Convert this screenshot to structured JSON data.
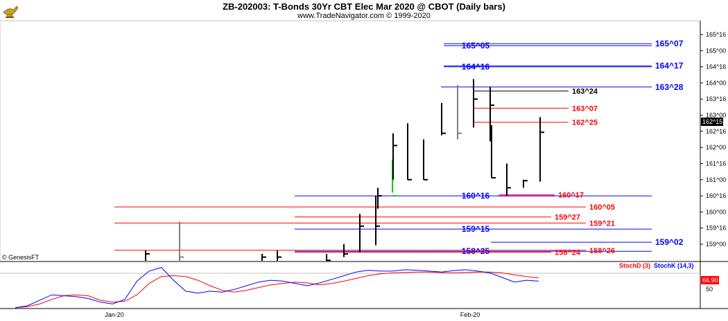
{
  "header": {
    "title": "ZB-202003:  T-Bonds 30Yr CBT Elec Mar 2020 @ CBOT  (Daily bars)",
    "subtitle": "www.TradeNavigator.com © 1999-2020",
    "copyright": "© GenesisFT",
    "logo_icon": "genie-lamp-icon"
  },
  "colors": {
    "blue_level": "#0000ff",
    "red_level": "#ff0000",
    "black_level": "#000000",
    "purple_level": "#8000ff",
    "bar_up": "#000000",
    "bar_gray": "#808080",
    "bar_green": "#00cc00",
    "stoch_d": "#ff0000",
    "stoch_k": "#0000ff",
    "price_marker_bg": "#000000",
    "stoch_marker_bg": "#ff0000"
  },
  "chart_data": [
    {
      "type": "bar",
      "name": "price",
      "ylim": [
        158.5,
        165.875
      ],
      "y_axis_labels": [
        "165^16",
        "165^00",
        "164^16",
        "164^00",
        "163^16",
        "163^00",
        "162^16",
        "162^00",
        "161^16",
        "161^00",
        "160^16",
        "160^00",
        "159^16",
        "159^00"
      ],
      "x_tick_labels": [
        "Jan-20",
        "Feb-20"
      ],
      "last_price_label": "162^15",
      "bars": [
        {
          "high": 158.8,
          "low": 158.2,
          "close": 158.7,
          "color": "black"
        },
        {
          "high": 159.7,
          "low": 158.2,
          "close": 158.6,
          "color": "gray"
        },
        {
          "high": 158.7,
          "low": 158.2,
          "close": 158.6,
          "color": "black"
        },
        {
          "high": 158.8,
          "low": 158.2,
          "close": 158.6,
          "color": "black"
        },
        {
          "high": 158.7,
          "low": 158.2,
          "close": 158.5,
          "color": "black"
        },
        {
          "high": 159.0,
          "low": 158.6,
          "close": 158.7,
          "color": "black"
        },
        {
          "high": 159.94,
          "low": 158.75,
          "close": 159.56,
          "color": "black"
        },
        {
          "high": 160.5,
          "low": 158.97,
          "close": 159.56,
          "color": "black"
        },
        {
          "high": 160.75,
          "low": 160.1,
          "close": 160.5,
          "color": "black"
        },
        {
          "high": 161.62,
          "low": 160.6,
          "close": 160.5,
          "color": "green"
        },
        {
          "high": 162.44,
          "low": 161.0,
          "close": 162.06,
          "color": "black"
        },
        {
          "high": 162.75,
          "low": 161.0,
          "close": 161.0,
          "color": "black"
        },
        {
          "high": 162.25,
          "low": 161.0,
          "close": 161.0,
          "color": "black"
        },
        {
          "high": 163.38,
          "low": 162.38,
          "close": 162.44,
          "color": "black"
        },
        {
          "high": 163.94,
          "low": 162.25,
          "close": 162.44,
          "color": "gray"
        },
        {
          "high": 164.12,
          "low": 162.62,
          "close": 163.5,
          "color": "black"
        },
        {
          "high": 163.88,
          "low": 162.19,
          "close": 163.31,
          "color": "black"
        },
        {
          "high": 162.69,
          "low": 161.06,
          "close": 161.06,
          "color": "black"
        },
        {
          "high": 161.5,
          "low": 160.5,
          "close": 160.75,
          "color": "black"
        },
        {
          "high": 161.0,
          "low": 160.75,
          "close": 160.97,
          "color": "black"
        },
        {
          "high": 162.94,
          "low": 160.94,
          "close": 162.47,
          "color": "black"
        }
      ],
      "levels": [
        {
          "label": "165^05",
          "value": 165.156,
          "color": "blue",
          "label_pos": "center"
        },
        {
          "label": "165^07",
          "value": 165.219,
          "color": "blue",
          "label_pos": "right"
        },
        {
          "label": "164^16",
          "value": 164.5,
          "color": "blue",
          "label_pos": "center"
        },
        {
          "label": "164^17",
          "value": 164.531,
          "color": "blue",
          "label_pos": "right"
        },
        {
          "label": "163^28",
          "value": 163.875,
          "color": "blue",
          "label_pos": "right"
        },
        {
          "label": "163^24",
          "value": 163.75,
          "color": "black",
          "label_pos": "mid"
        },
        {
          "label": "163^07",
          "value": 163.219,
          "color": "red",
          "label_pos": "mid"
        },
        {
          "label": "162^25",
          "value": 162.781,
          "color": "red",
          "label_pos": "mid"
        },
        {
          "label": "160^16",
          "value": 160.5,
          "color": "blue",
          "label_pos": "center"
        },
        {
          "label": "160^17",
          "value": 160.531,
          "color": "red",
          "label_pos": "mid"
        },
        {
          "label": "160^05",
          "value": 160.156,
          "color": "red",
          "label_pos": "mid2"
        },
        {
          "label": "159^27",
          "value": 159.844,
          "color": "red",
          "label_pos": "mid"
        },
        {
          "label": "159^21",
          "value": 159.656,
          "color": "red",
          "label_pos": "mid2"
        },
        {
          "label": "159^15",
          "value": 159.469,
          "color": "blue",
          "label_pos": "center"
        },
        {
          "label": "159^02",
          "value": 159.063,
          "color": "blue",
          "label_pos": "right"
        },
        {
          "label": "158^25",
          "value": 158.781,
          "color": "blue",
          "label_pos": "center"
        },
        {
          "label": "158^26",
          "value": 158.812,
          "color": "red",
          "label_pos": "mid2"
        },
        {
          "label": "158^24",
          "value": 158.75,
          "color": "red",
          "label_pos": "mid"
        }
      ]
    },
    {
      "type": "line",
      "name": "stochastic",
      "ylim": [
        0,
        100
      ],
      "y_axis_labels": [
        "50"
      ],
      "legend": [
        "StochD (3)",
        "StochK (14,3)"
      ],
      "last_value_label": "66.90",
      "series": [
        {
          "name": "StochD (3)",
          "values": [
            2,
            4,
            10,
            20,
            28,
            30,
            28,
            18,
            14,
            16,
            30,
            55,
            70,
            72,
            70,
            62,
            50,
            40,
            36,
            40,
            46,
            52,
            55,
            58,
            56,
            52,
            55,
            60,
            66,
            72,
            76,
            78,
            79,
            80,
            80,
            79,
            78,
            79,
            80,
            80,
            78,
            74,
            70,
            67
          ]
        },
        {
          "name": "StochK (14,3)",
          "values": [
            2,
            6,
            18,
            30,
            28,
            26,
            22,
            14,
            10,
            20,
            60,
            82,
            90,
            62,
            38,
            34,
            38,
            36,
            42,
            50,
            58,
            62,
            60,
            55,
            50,
            56,
            64,
            72,
            80,
            84,
            82,
            82,
            85,
            84,
            82,
            80,
            83,
            85,
            82,
            78,
            68,
            58,
            62,
            60
          ]
        }
      ]
    }
  ]
}
